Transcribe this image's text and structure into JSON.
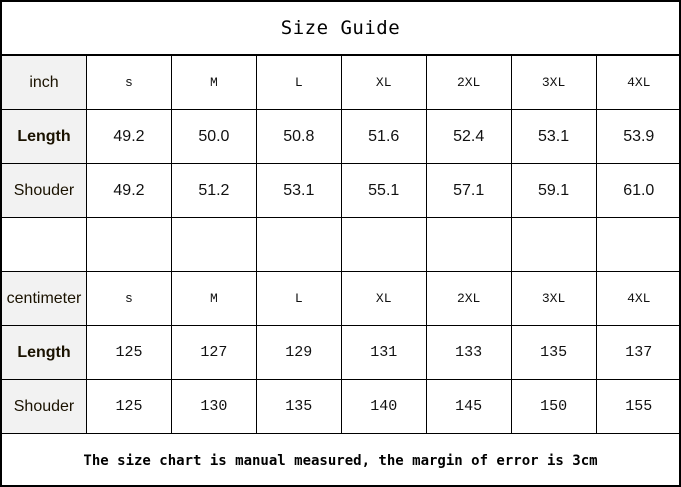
{
  "title": "Size Guide",
  "sizes": [
    "s",
    "M",
    "L",
    "XL",
    "2XL",
    "3XL",
    "4XL"
  ],
  "inch": {
    "unit_label": "inch",
    "rows": [
      {
        "label": "Length",
        "values": [
          "49.2",
          "50.0",
          "50.8",
          "51.6",
          "52.4",
          "53.1",
          "53.9"
        ]
      },
      {
        "label": "Shouder",
        "values": [
          "49.2",
          "51.2",
          "53.1",
          "55.1",
          "57.1",
          "59.1",
          "61.0"
        ]
      }
    ]
  },
  "centimeter": {
    "unit_label": "centimeter",
    "rows": [
      {
        "label": "Length",
        "values": [
          "125",
          "127",
          "129",
          "131",
          "133",
          "135",
          "137"
        ]
      },
      {
        "label": "Shouder",
        "values": [
          "125",
          "130",
          "135",
          "140",
          "145",
          "150",
          "155"
        ]
      }
    ]
  },
  "note": "The size chart is manual measured, the margin of error is 3cm"
}
